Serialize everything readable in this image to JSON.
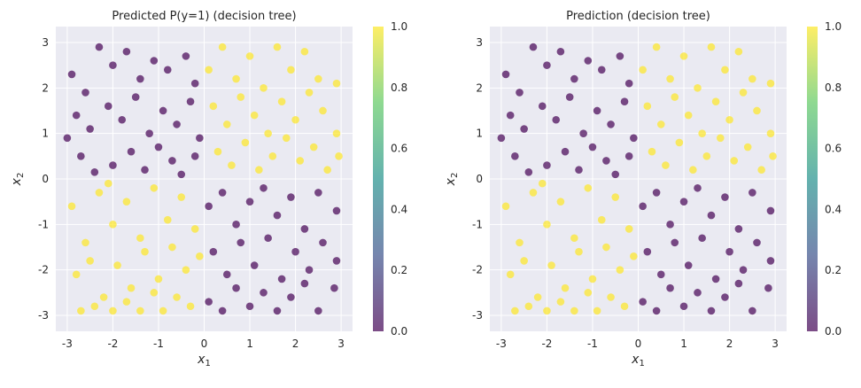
{
  "colors": {
    "class0": "#440154",
    "class1": "#fde725",
    "background": "#eaeaf2",
    "grid": "#ffffff"
  },
  "chart_data": [
    {
      "type": "scatter",
      "title": "Predicted P(y=1) (decision tree)",
      "xlabel": "x",
      "xlabel_sub": "1",
      "ylabel": "x",
      "ylabel_sub": "2",
      "xlim": [
        -3.25,
        3.25
      ],
      "ylim": [
        -3.35,
        3.35
      ],
      "xticks": [
        -3,
        -2,
        -1,
        0,
        1,
        2,
        3
      ],
      "yticks": [
        -3,
        -2,
        -1,
        0,
        1,
        2,
        3
      ],
      "colorbar": {
        "ticks": [
          "0.0",
          "0.2",
          "0.4",
          "0.6",
          "0.8",
          "1.0"
        ],
        "range": [
          0,
          1
        ],
        "colormap": "viridis"
      },
      "grid": true,
      "points": [
        [
          -2.9,
          2.3,
          0
        ],
        [
          -2.6,
          1.9,
          0
        ],
        [
          -2.3,
          2.9,
          0
        ],
        [
          -2.0,
          2.5,
          0
        ],
        [
          -1.7,
          2.8,
          0
        ],
        [
          -1.4,
          2.2,
          0
        ],
        [
          -1.1,
          2.6,
          0
        ],
        [
          -0.8,
          2.4,
          0
        ],
        [
          -0.4,
          2.7,
          0
        ],
        [
          -0.2,
          2.1,
          0
        ],
        [
          -2.8,
          1.4,
          0
        ],
        [
          -2.5,
          1.1,
          0
        ],
        [
          -2.1,
          1.6,
          0
        ],
        [
          -1.8,
          1.3,
          0
        ],
        [
          -1.5,
          1.8,
          0
        ],
        [
          -1.2,
          1.0,
          0
        ],
        [
          -0.9,
          1.5,
          0
        ],
        [
          -0.6,
          1.2,
          0
        ],
        [
          -0.3,
          1.7,
          0
        ],
        [
          -0.1,
          0.9,
          0
        ],
        [
          -3.0,
          0.9,
          0
        ],
        [
          -2.7,
          0.5,
          0
        ],
        [
          -2.4,
          0.15,
          0
        ],
        [
          -2.0,
          0.3,
          0
        ],
        [
          -1.6,
          0.6,
          0
        ],
        [
          -1.3,
          0.2,
          0
        ],
        [
          -1.0,
          0.7,
          0
        ],
        [
          -0.7,
          0.4,
          0
        ],
        [
          -0.5,
          0.1,
          0
        ],
        [
          -0.2,
          0.5,
          0
        ],
        [
          0.1,
          2.4,
          1
        ],
        [
          0.4,
          2.9,
          1
        ],
        [
          0.7,
          2.2,
          1
        ],
        [
          1.0,
          2.7,
          1
        ],
        [
          1.3,
          2.0,
          1
        ],
        [
          1.6,
          2.9,
          1
        ],
        [
          1.9,
          2.4,
          1
        ],
        [
          2.2,
          2.8,
          1
        ],
        [
          2.5,
          2.2,
          1
        ],
        [
          2.9,
          2.1,
          1
        ],
        [
          0.2,
          1.6,
          1
        ],
        [
          0.5,
          1.2,
          1
        ],
        [
          0.8,
          1.8,
          1
        ],
        [
          1.1,
          1.4,
          1
        ],
        [
          1.4,
          1.0,
          1
        ],
        [
          1.7,
          1.7,
          1
        ],
        [
          2.0,
          1.3,
          1
        ],
        [
          2.3,
          1.9,
          1
        ],
        [
          2.6,
          1.5,
          1
        ],
        [
          2.9,
          1.0,
          1
        ],
        [
          0.3,
          0.6,
          1
        ],
        [
          0.6,
          0.3,
          1
        ],
        [
          0.9,
          0.8,
          1
        ],
        [
          1.2,
          0.2,
          1
        ],
        [
          1.5,
          0.5,
          1
        ],
        [
          1.8,
          0.9,
          1
        ],
        [
          2.1,
          0.4,
          1
        ],
        [
          2.4,
          0.7,
          1
        ],
        [
          2.7,
          0.2,
          1
        ],
        [
          2.95,
          0.5,
          1
        ],
        [
          -2.9,
          -0.6,
          1
        ],
        [
          -2.6,
          -1.4,
          1
        ],
        [
          -2.3,
          -0.3,
          1
        ],
        [
          -2.0,
          -1.0,
          1
        ],
        [
          -1.7,
          -0.5,
          1
        ],
        [
          -1.4,
          -1.3,
          1
        ],
        [
          -1.1,
          -0.2,
          1
        ],
        [
          -0.8,
          -0.9,
          1
        ],
        [
          -0.5,
          -0.4,
          1
        ],
        [
          -0.2,
          -1.1,
          1
        ],
        [
          -2.8,
          -2.1,
          1
        ],
        [
          -2.5,
          -1.8,
          1
        ],
        [
          -2.2,
          -2.6,
          1
        ],
        [
          -1.9,
          -1.9,
          1
        ],
        [
          -1.6,
          -2.4,
          1
        ],
        [
          -1.3,
          -1.6,
          1
        ],
        [
          -1.0,
          -2.2,
          1
        ],
        [
          -0.7,
          -1.5,
          1
        ],
        [
          -0.4,
          -2.0,
          1
        ],
        [
          -0.1,
          -1.7,
          1
        ],
        [
          -2.7,
          -2.9,
          1
        ],
        [
          -2.4,
          -2.8,
          1
        ],
        [
          -2.0,
          -2.9,
          1
        ],
        [
          -1.7,
          -2.7,
          1
        ],
        [
          -1.4,
          -2.9,
          1
        ],
        [
          -1.1,
          -2.5,
          1
        ],
        [
          -0.9,
          -2.9,
          1
        ],
        [
          -0.6,
          -2.6,
          1
        ],
        [
          -0.3,
          -2.8,
          1
        ],
        [
          -2.1,
          -0.1,
          1
        ],
        [
          0.1,
          -0.6,
          0
        ],
        [
          0.4,
          -0.3,
          0
        ],
        [
          0.7,
          -1.0,
          0
        ],
        [
          1.0,
          -0.5,
          0
        ],
        [
          1.3,
          -0.2,
          0
        ],
        [
          1.6,
          -0.8,
          0
        ],
        [
          1.9,
          -0.4,
          0
        ],
        [
          2.2,
          -1.1,
          0
        ],
        [
          2.5,
          -0.3,
          0
        ],
        [
          2.9,
          -0.7,
          0
        ],
        [
          0.2,
          -1.6,
          0
        ],
        [
          0.5,
          -2.1,
          0
        ],
        [
          0.8,
          -1.4,
          0
        ],
        [
          1.1,
          -1.9,
          0
        ],
        [
          1.4,
          -1.3,
          0
        ],
        [
          1.7,
          -2.2,
          0
        ],
        [
          2.0,
          -1.6,
          0
        ],
        [
          2.3,
          -2.0,
          0
        ],
        [
          2.6,
          -1.4,
          0
        ],
        [
          2.9,
          -1.8,
          0
        ],
        [
          0.1,
          -2.7,
          0
        ],
        [
          0.4,
          -2.9,
          0
        ],
        [
          0.7,
          -2.4,
          0
        ],
        [
          1.0,
          -2.8,
          0
        ],
        [
          1.3,
          -2.5,
          0
        ],
        [
          1.6,
          -2.9,
          0
        ],
        [
          1.9,
          -2.6,
          0
        ],
        [
          2.2,
          -2.3,
          0
        ],
        [
          2.5,
          -2.9,
          0
        ],
        [
          2.85,
          -2.4,
          0
        ]
      ]
    },
    {
      "type": "scatter",
      "title": "Prediction (decision tree)",
      "xlabel": "x",
      "xlabel_sub": "1",
      "ylabel": "x",
      "ylabel_sub": "2",
      "xlim": [
        -3.25,
        3.25
      ],
      "ylim": [
        -3.35,
        3.35
      ],
      "xticks": [
        -3,
        -2,
        -1,
        0,
        1,
        2,
        3
      ],
      "yticks": [
        -3,
        -2,
        -1,
        0,
        1,
        2,
        3
      ],
      "colorbar": {
        "ticks": [
          "0.0",
          "0.2",
          "0.4",
          "0.6",
          "0.8",
          "1.0"
        ],
        "range": [
          0,
          1
        ],
        "colormap": "viridis"
      },
      "grid": true,
      "points": [
        [
          -2.9,
          2.3,
          0
        ],
        [
          -2.6,
          1.9,
          0
        ],
        [
          -2.3,
          2.9,
          0
        ],
        [
          -2.0,
          2.5,
          0
        ],
        [
          -1.7,
          2.8,
          0
        ],
        [
          -1.4,
          2.2,
          0
        ],
        [
          -1.1,
          2.6,
          0
        ],
        [
          -0.8,
          2.4,
          0
        ],
        [
          -0.4,
          2.7,
          0
        ],
        [
          -0.2,
          2.1,
          0
        ],
        [
          -2.8,
          1.4,
          0
        ],
        [
          -2.5,
          1.1,
          0
        ],
        [
          -2.1,
          1.6,
          0
        ],
        [
          -1.8,
          1.3,
          0
        ],
        [
          -1.5,
          1.8,
          0
        ],
        [
          -1.2,
          1.0,
          0
        ],
        [
          -0.9,
          1.5,
          0
        ],
        [
          -0.6,
          1.2,
          0
        ],
        [
          -0.3,
          1.7,
          0
        ],
        [
          -0.1,
          0.9,
          0
        ],
        [
          -3.0,
          0.9,
          0
        ],
        [
          -2.7,
          0.5,
          0
        ],
        [
          -2.4,
          0.15,
          0
        ],
        [
          -2.0,
          0.3,
          0
        ],
        [
          -1.6,
          0.6,
          0
        ],
        [
          -1.3,
          0.2,
          0
        ],
        [
          -1.0,
          0.7,
          0
        ],
        [
          -0.7,
          0.4,
          0
        ],
        [
          -0.5,
          0.1,
          0
        ],
        [
          -0.2,
          0.5,
          0
        ],
        [
          0.1,
          2.4,
          1
        ],
        [
          0.4,
          2.9,
          1
        ],
        [
          0.7,
          2.2,
          1
        ],
        [
          1.0,
          2.7,
          1
        ],
        [
          1.3,
          2.0,
          1
        ],
        [
          1.6,
          2.9,
          1
        ],
        [
          1.9,
          2.4,
          1
        ],
        [
          2.2,
          2.8,
          1
        ],
        [
          2.5,
          2.2,
          1
        ],
        [
          2.9,
          2.1,
          1
        ],
        [
          0.2,
          1.6,
          1
        ],
        [
          0.5,
          1.2,
          1
        ],
        [
          0.8,
          1.8,
          1
        ],
        [
          1.1,
          1.4,
          1
        ],
        [
          1.4,
          1.0,
          1
        ],
        [
          1.7,
          1.7,
          1
        ],
        [
          2.0,
          1.3,
          1
        ],
        [
          2.3,
          1.9,
          1
        ],
        [
          2.6,
          1.5,
          1
        ],
        [
          2.9,
          1.0,
          1
        ],
        [
          0.3,
          0.6,
          1
        ],
        [
          0.6,
          0.3,
          1
        ],
        [
          0.9,
          0.8,
          1
        ],
        [
          1.2,
          0.2,
          1
        ],
        [
          1.5,
          0.5,
          1
        ],
        [
          1.8,
          0.9,
          1
        ],
        [
          2.1,
          0.4,
          1
        ],
        [
          2.4,
          0.7,
          1
        ],
        [
          2.7,
          0.2,
          1
        ],
        [
          2.95,
          0.5,
          1
        ],
        [
          -2.9,
          -0.6,
          1
        ],
        [
          -2.6,
          -1.4,
          1
        ],
        [
          -2.3,
          -0.3,
          1
        ],
        [
          -2.0,
          -1.0,
          1
        ],
        [
          -1.7,
          -0.5,
          1
        ],
        [
          -1.4,
          -1.3,
          1
        ],
        [
          -1.1,
          -0.2,
          1
        ],
        [
          -0.8,
          -0.9,
          1
        ],
        [
          -0.5,
          -0.4,
          1
        ],
        [
          -0.2,
          -1.1,
          1
        ],
        [
          -2.8,
          -2.1,
          1
        ],
        [
          -2.5,
          -1.8,
          1
        ],
        [
          -2.2,
          -2.6,
          1
        ],
        [
          -1.9,
          -1.9,
          1
        ],
        [
          -1.6,
          -2.4,
          1
        ],
        [
          -1.3,
          -1.6,
          1
        ],
        [
          -1.0,
          -2.2,
          1
        ],
        [
          -0.7,
          -1.5,
          1
        ],
        [
          -0.4,
          -2.0,
          1
        ],
        [
          -0.1,
          -1.7,
          1
        ],
        [
          -2.7,
          -2.9,
          1
        ],
        [
          -2.4,
          -2.8,
          1
        ],
        [
          -2.0,
          -2.9,
          1
        ],
        [
          -1.7,
          -2.7,
          1
        ],
        [
          -1.4,
          -2.9,
          1
        ],
        [
          -1.1,
          -2.5,
          1
        ],
        [
          -0.9,
          -2.9,
          1
        ],
        [
          -0.6,
          -2.6,
          1
        ],
        [
          -0.3,
          -2.8,
          1
        ],
        [
          -2.1,
          -0.1,
          1
        ],
        [
          0.1,
          -0.6,
          0
        ],
        [
          0.4,
          -0.3,
          0
        ],
        [
          0.7,
          -1.0,
          0
        ],
        [
          1.0,
          -0.5,
          0
        ],
        [
          1.3,
          -0.2,
          0
        ],
        [
          1.6,
          -0.8,
          0
        ],
        [
          1.9,
          -0.4,
          0
        ],
        [
          2.2,
          -1.1,
          0
        ],
        [
          2.5,
          -0.3,
          0
        ],
        [
          2.9,
          -0.7,
          0
        ],
        [
          0.2,
          -1.6,
          0
        ],
        [
          0.5,
          -2.1,
          0
        ],
        [
          0.8,
          -1.4,
          0
        ],
        [
          1.1,
          -1.9,
          0
        ],
        [
          1.4,
          -1.3,
          0
        ],
        [
          1.7,
          -2.2,
          0
        ],
        [
          2.0,
          -1.6,
          0
        ],
        [
          2.3,
          -2.0,
          0
        ],
        [
          2.6,
          -1.4,
          0
        ],
        [
          2.9,
          -1.8,
          0
        ],
        [
          0.1,
          -2.7,
          0
        ],
        [
          0.4,
          -2.9,
          0
        ],
        [
          0.7,
          -2.4,
          0
        ],
        [
          1.0,
          -2.8,
          0
        ],
        [
          1.3,
          -2.5,
          0
        ],
        [
          1.6,
          -2.9,
          0
        ],
        [
          1.9,
          -2.6,
          0
        ],
        [
          2.2,
          -2.3,
          0
        ],
        [
          2.5,
          -2.9,
          0
        ],
        [
          2.85,
          -2.4,
          0
        ]
      ]
    }
  ]
}
